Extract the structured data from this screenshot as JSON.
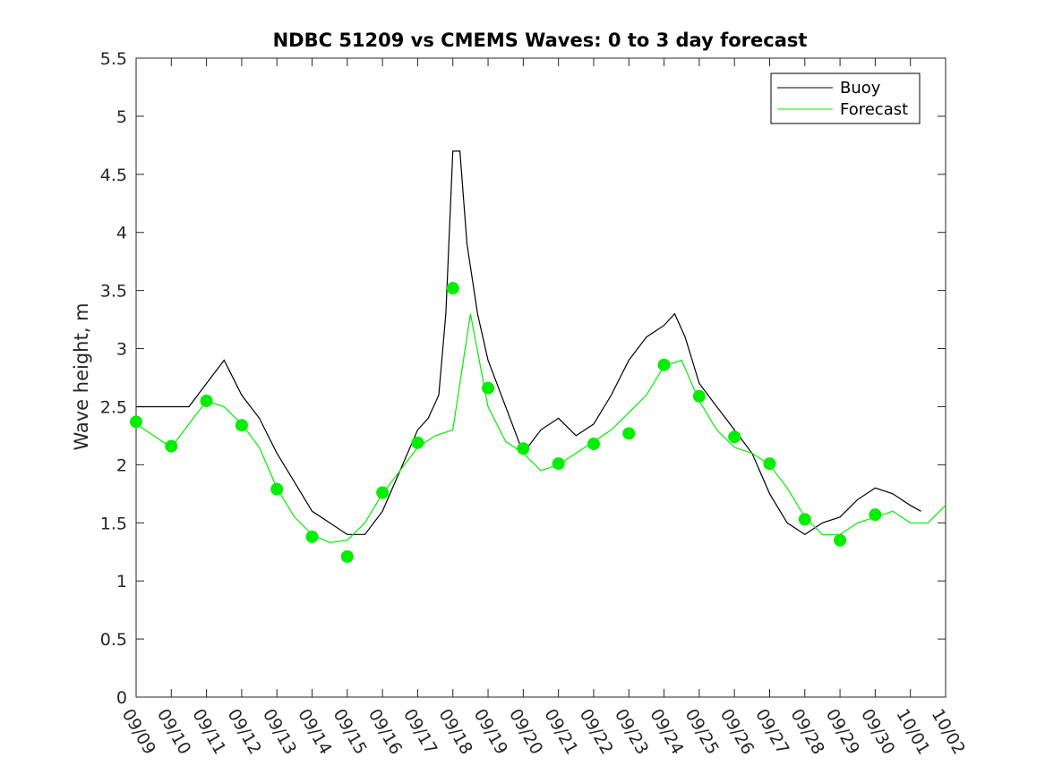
{
  "chart_data": {
    "type": "line",
    "title": "NDBC 51209 vs CMEMS Waves: 0 to 3 day forecast",
    "xlabel": "",
    "ylabel": "Wave height, m",
    "x_tick_labels": [
      "09/09",
      "09/10",
      "09/11",
      "09/12",
      "09/13",
      "09/14",
      "09/15",
      "09/16",
      "09/17",
      "09/18",
      "09/19",
      "09/20",
      "09/21",
      "09/22",
      "09/23",
      "09/24",
      "09/25",
      "09/26",
      "09/27",
      "09/28",
      "09/29",
      "09/30",
      "10/01",
      "10/02"
    ],
    "y_tick_labels": [
      "0",
      "0.5",
      "1",
      "1.5",
      "2",
      "2.5",
      "3",
      "3.5",
      "4",
      "4.5",
      "5",
      "5.5"
    ],
    "xlim": [
      0,
      23
    ],
    "ylim": [
      0,
      5.5
    ],
    "grid": false,
    "legend": {
      "position": "top-right",
      "entries": [
        {
          "name": "Buoy",
          "color": "#000000"
        },
        {
          "name": "Forecast",
          "color": "#00ee00"
        }
      ]
    },
    "series": [
      {
        "name": "Buoy",
        "color": "#000000",
        "x": [
          0,
          0.5,
          1,
          1.5,
          2,
          2.5,
          3,
          3.5,
          4,
          4.5,
          5,
          5.5,
          6,
          6.5,
          7,
          7.5,
          8,
          8.3,
          8.6,
          8.8,
          9,
          9.2,
          9.4,
          9.7,
          10,
          10.5,
          11,
          11.5,
          12,
          12.5,
          13,
          13.5,
          14,
          14.5,
          15,
          15.3,
          15.6,
          16,
          16.5,
          17,
          17.5,
          18,
          18.5,
          19,
          19.5,
          20,
          20.5,
          21,
          21.5,
          22,
          22.3
        ],
        "y": [
          2.5,
          2.5,
          2.5,
          2.5,
          2.7,
          2.9,
          2.6,
          2.4,
          2.1,
          1.85,
          1.6,
          1.5,
          1.4,
          1.4,
          1.6,
          1.95,
          2.3,
          2.4,
          2.6,
          3.3,
          4.7,
          4.7,
          3.9,
          3.3,
          2.9,
          2.5,
          2.1,
          2.3,
          2.4,
          2.25,
          2.35,
          2.6,
          2.9,
          3.1,
          3.2,
          3.3,
          3.1,
          2.7,
          2.5,
          2.3,
          2.1,
          1.75,
          1.5,
          1.4,
          1.5,
          1.55,
          1.7,
          1.8,
          1.75,
          1.65,
          1.6
        ]
      },
      {
        "name": "Forecast",
        "color": "#00ee00",
        "x": [
          0,
          0.5,
          1,
          1.5,
          2,
          2.5,
          3,
          3.5,
          4,
          4.5,
          5,
          5.5,
          6,
          6.5,
          7,
          7.5,
          8,
          8.5,
          9,
          9.5,
          10,
          10.5,
          11,
          11.5,
          12,
          12.5,
          13,
          13.5,
          14,
          14.5,
          15,
          15.5,
          16,
          16.5,
          17,
          17.5,
          18,
          18.5,
          19,
          19.5,
          20,
          20.5,
          21,
          21.5,
          22,
          22.5,
          23
        ],
        "y": [
          2.35,
          2.25,
          2.15,
          2.35,
          2.55,
          2.5,
          2.35,
          2.15,
          1.8,
          1.55,
          1.4,
          1.33,
          1.35,
          1.5,
          1.75,
          1.95,
          2.15,
          2.25,
          2.3,
          3.3,
          2.5,
          2.2,
          2.1,
          1.95,
          2.0,
          2.1,
          2.2,
          2.3,
          2.45,
          2.6,
          2.85,
          2.9,
          2.55,
          2.3,
          2.15,
          2.1,
          2.0,
          1.8,
          1.55,
          1.4,
          1.4,
          1.5,
          1.55,
          1.6,
          1.5,
          1.5,
          1.65
        ]
      }
    ],
    "markers": {
      "name": "Forecast",
      "color": "#00ee00",
      "x": [
        0,
        1,
        2,
        3,
        4,
        5,
        6,
        7,
        8,
        9,
        10,
        11,
        12,
        13,
        14,
        15,
        16,
        17,
        18,
        19,
        20,
        21
      ],
      "y": [
        2.37,
        2.16,
        2.55,
        2.34,
        1.79,
        1.38,
        1.21,
        1.76,
        2.19,
        3.52,
        2.66,
        2.14,
        2.01,
        2.18,
        2.27,
        2.86,
        2.59,
        2.24,
        2.01,
        1.53,
        1.35,
        1.57
      ]
    }
  }
}
